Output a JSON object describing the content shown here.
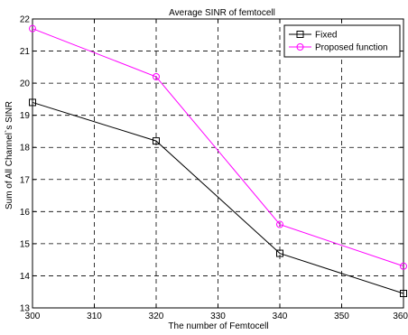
{
  "chart_data": {
    "type": "line",
    "title": "Average SINR of femtocell",
    "xlabel": "The number of Femtocell",
    "ylabel": "Sum of All Channel`s SINR",
    "xlim": [
      300,
      360
    ],
    "ylim": [
      13,
      22
    ],
    "xticks": [
      300,
      310,
      320,
      330,
      340,
      350,
      360
    ],
    "yticks": [
      13,
      14,
      15,
      16,
      17,
      18,
      19,
      20,
      21,
      22
    ],
    "grid": true,
    "legend_position": "top-right",
    "x": [
      300,
      320,
      340,
      360
    ],
    "series": [
      {
        "name": "Fixed",
        "values": [
          19.4,
          18.2,
          14.7,
          13.45
        ],
        "color": "#000000",
        "marker": "square"
      },
      {
        "name": "Proposed function",
        "values": [
          21.7,
          20.2,
          15.6,
          14.3
        ],
        "color": "#ff00ff",
        "marker": "circle"
      }
    ]
  }
}
